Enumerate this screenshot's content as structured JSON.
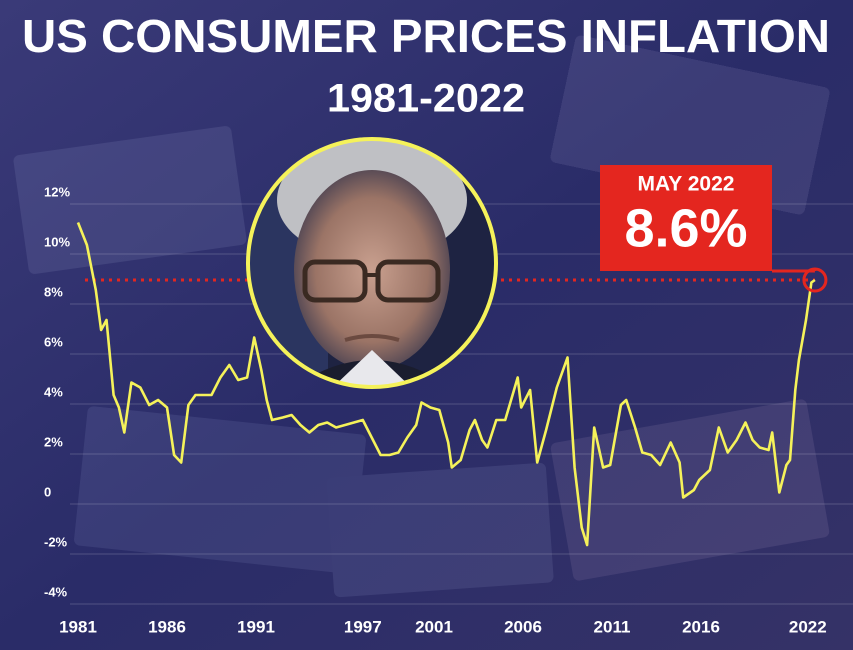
{
  "chart_data": {
    "type": "line",
    "title": "US CONSUMER PRICES INFLATION",
    "subtitle": "1981-2022",
    "color": "#f5f25a",
    "grid": true,
    "xlim": [
      1980,
      2023.5
    ],
    "xticks": [
      1981,
      1986,
      1991,
      1997,
      2001,
      2006,
      2011,
      2016,
      2022
    ],
    "ylim": [
      -4.5,
      12.5
    ],
    "yticks": [
      {
        "value": 12,
        "label": "12%"
      },
      {
        "value": 10,
        "label": "10%"
      },
      {
        "value": 8,
        "label": "8%"
      },
      {
        "value": 6,
        "label": "6%"
      },
      {
        "value": 4,
        "label": "4%"
      },
      {
        "value": 2,
        "label": "2%"
      },
      0,
      {
        "value": -2,
        "label": "-2%"
      },
      {
        "value": -4,
        "label": "-4%"
      }
    ],
    "x": [
      1981.0,
      1981.5,
      1982.0,
      1982.3,
      1982.6,
      1983.0,
      1983.3,
      1983.6,
      1984.0,
      1984.5,
      1985.0,
      1985.5,
      1986.0,
      1986.4,
      1986.8,
      1987.2,
      1987.6,
      1988.0,
      1988.5,
      1989.0,
      1989.5,
      1990.0,
      1990.5,
      1990.9,
      1991.3,
      1991.6,
      1991.9,
      1992.5,
      1993.0,
      1993.5,
      1994.0,
      1994.5,
      1995.0,
      1995.5,
      1996.0,
      1996.5,
      1997.0,
      1997.5,
      1998.0,
      1998.5,
      1999.0,
      1999.5,
      2000.0,
      2000.3,
      2000.8,
      2001.3,
      2001.8,
      2002.0,
      2002.5,
      2003.0,
      2003.3,
      2003.7,
      2004.0,
      2004.5,
      2005.0,
      2005.7,
      2005.9,
      2006.4,
      2006.8,
      2007.3,
      2007.9,
      2008.5,
      2008.9,
      2009.3,
      2009.6,
      2010.0,
      2010.5,
      2010.9,
      2011.5,
      2011.8,
      2012.3,
      2012.7,
      2013.2,
      2013.7,
      2014.3,
      2014.8,
      2015.0,
      2015.6,
      2015.9,
      2016.5,
      2017.0,
      2017.5,
      2018.0,
      2018.5,
      2018.9,
      2019.3,
      2019.8,
      2020.0,
      2020.4,
      2020.8,
      2021.0,
      2021.3,
      2021.5,
      2021.9,
      2022.2,
      2022.4
    ],
    "values": [
      10.9,
      10.0,
      8.2,
      6.6,
      7.0,
      4.0,
      3.5,
      2.5,
      4.5,
      4.3,
      3.6,
      3.8,
      3.5,
      1.6,
      1.3,
      3.6,
      4.0,
      4.0,
      4.0,
      4.7,
      5.2,
      4.6,
      4.7,
      6.3,
      5.0,
      3.8,
      3.0,
      3.1,
      3.2,
      2.8,
      2.5,
      2.8,
      2.9,
      2.7,
      2.8,
      2.9,
      3.0,
      2.3,
      1.6,
      1.6,
      1.7,
      2.3,
      2.8,
      3.7,
      3.5,
      3.4,
      2.1,
      1.1,
      1.4,
      2.6,
      3.0,
      2.2,
      1.9,
      3.0,
      3.0,
      4.7,
      3.5,
      4.2,
      1.3,
      2.6,
      4.3,
      5.5,
      1.1,
      -1.3,
      -2.0,
      2.7,
      1.1,
      1.2,
      3.6,
      3.8,
      2.7,
      1.7,
      1.6,
      1.2,
      2.1,
      1.3,
      -0.1,
      0.2,
      0.6,
      1.0,
      2.7,
      1.7,
      2.2,
      2.9,
      2.2,
      1.9,
      1.8,
      2.5,
      0.1,
      1.2,
      1.4,
      4.2,
      5.4,
      7.0,
      8.5,
      8.6
    ],
    "annotation": {
      "label": "MAY 2022",
      "value": 8.6,
      "value_label": "8.6%"
    }
  }
}
